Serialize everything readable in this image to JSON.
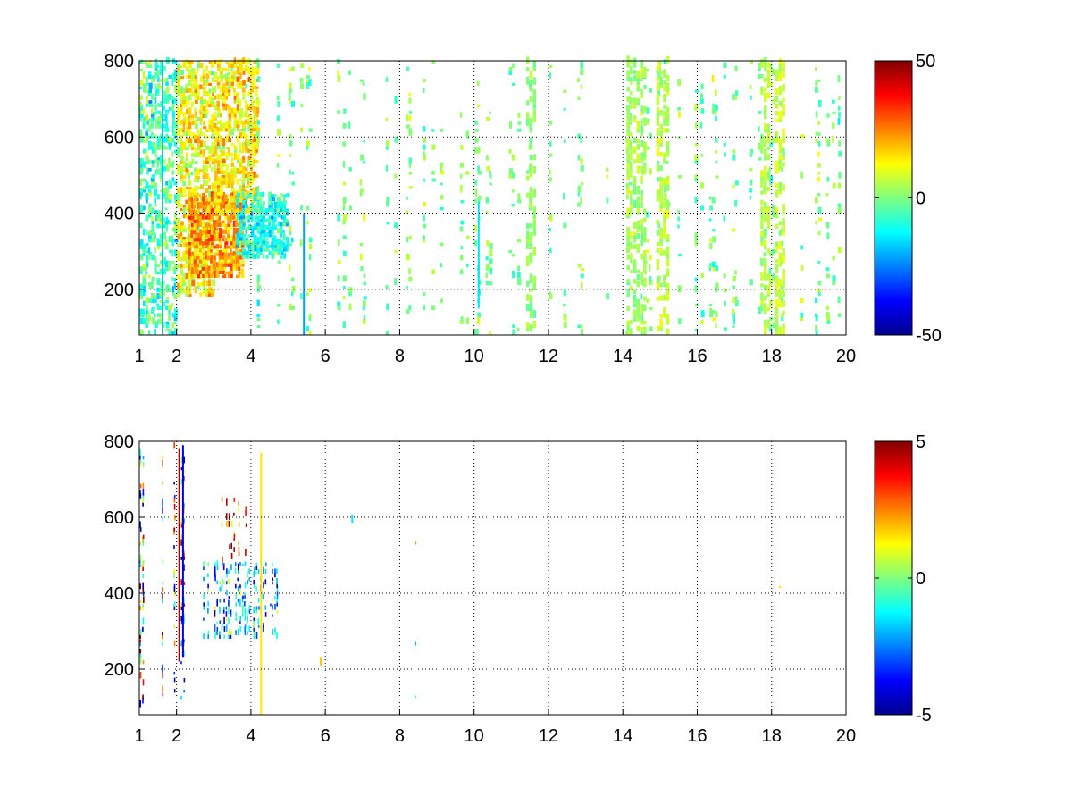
{
  "chart_data": [
    {
      "type": "heatmap",
      "title": "",
      "xlabel": "",
      "ylabel": "",
      "xlim": [
        1,
        20
      ],
      "ylim": [
        80,
        800
      ],
      "xticks": [
        1,
        2,
        4,
        6,
        8,
        10,
        12,
        14,
        16,
        18,
        20
      ],
      "xtick_labels": [
        "1",
        "2",
        "4",
        "6",
        "8",
        "10",
        "12",
        "14",
        "16",
        "18",
        "20"
      ],
      "yticks": [
        200,
        400,
        600,
        800
      ],
      "ytick_labels": [
        "200",
        "400",
        "600",
        "800"
      ],
      "grid": true,
      "colormap": "jet",
      "clim": [
        -50,
        50
      ],
      "colorbar_ticks": [
        -50,
        0,
        50
      ],
      "colorbar_labels": [
        "-50",
        "0",
        "50"
      ],
      "nan_color": "#ffffff",
      "regions": [
        {
          "x": [
            1.0,
            2.0
          ],
          "y": [
            80,
            800
          ],
          "density": 0.45,
          "mean": -5,
          "spread": 10
        },
        {
          "x": [
            2.0,
            3.0
          ],
          "y": [
            180,
            800
          ],
          "density": 0.55,
          "mean": 12,
          "spread": 10
        },
        {
          "x": [
            2.3,
            3.8
          ],
          "y": [
            230,
            450
          ],
          "density": 0.85,
          "mean": 22,
          "spread": 10
        },
        {
          "x": [
            3.0,
            4.2
          ],
          "y": [
            400,
            800
          ],
          "density": 0.6,
          "mean": 14,
          "spread": 9
        },
        {
          "x": [
            3.6,
            5.0
          ],
          "y": [
            280,
            450
          ],
          "density": 0.6,
          "mean": -10,
          "spread": 9
        },
        {
          "x": [
            4.0,
            6.0
          ],
          "y": [
            80,
            800
          ],
          "density": 0.15,
          "mean": 0,
          "spread": 10
        },
        {
          "x": [
            6.0,
            20.0
          ],
          "y": [
            80,
            800
          ],
          "density": 0.14,
          "mean": 0,
          "spread": 8
        }
      ],
      "streaks": [
        {
          "x": 1.6,
          "y": [
            80,
            800
          ],
          "value": -18
        },
        {
          "x": 5.4,
          "y": [
            80,
            400
          ],
          "value": -22
        },
        {
          "x": 10.1,
          "y": [
            150,
            430
          ],
          "value": -15
        }
      ],
      "column_bands": [
        {
          "x": [
            14.1,
            14.6
          ],
          "density": 0.4,
          "mean": 4
        },
        {
          "x": [
            14.9,
            15.2
          ],
          "density": 0.35,
          "mean": 5
        },
        {
          "x": [
            17.7,
            17.9
          ],
          "density": 0.35,
          "mean": 5
        },
        {
          "x": [
            18.1,
            18.3
          ],
          "density": 0.4,
          "mean": 7
        },
        {
          "x": [
            11.4,
            11.6
          ],
          "density": 0.3,
          "mean": 2
        }
      ]
    },
    {
      "type": "heatmap",
      "title": "",
      "xlabel": "",
      "ylabel": "",
      "xlim": [
        1,
        20
      ],
      "ylim": [
        80,
        800
      ],
      "xticks": [
        1,
        2,
        4,
        6,
        8,
        10,
        12,
        14,
        16,
        18,
        20
      ],
      "xtick_labels": [
        "1",
        "2",
        "4",
        "6",
        "8",
        "10",
        "12",
        "14",
        "16",
        "18",
        "20"
      ],
      "yticks": [
        200,
        400,
        600,
        800
      ],
      "ytick_labels": [
        "200",
        "400",
        "600",
        "800"
      ],
      "grid": true,
      "colormap": "jet",
      "clim": [
        -5,
        5
      ],
      "colorbar_ticks": [
        -5,
        0,
        5
      ],
      "colorbar_labels": [
        "-5",
        "0",
        "5"
      ],
      "nan_color": "#ffffff",
      "regions": [
        {
          "x": [
            1.0,
            1.15
          ],
          "y": [
            100,
            780
          ],
          "density": 0.3,
          "mean": 0,
          "spread": 5
        },
        {
          "x": [
            1.6,
            2.3
          ],
          "y": [
            100,
            790
          ],
          "density": 0.22,
          "mean": 0,
          "spread": 6
        },
        {
          "x": [
            2.7,
            4.8
          ],
          "y": [
            280,
            480
          ],
          "density": 0.35,
          "mean": -2,
          "spread": 2
        },
        {
          "x": [
            3.2,
            3.9
          ],
          "y": [
            480,
            650
          ],
          "density": 0.25,
          "mean": 3.5,
          "spread": 2
        }
      ],
      "streaks": [
        {
          "x": 2.05,
          "y": [
            220,
            780
          ],
          "value": 4.5
        },
        {
          "x": 2.15,
          "y": [
            230,
            790
          ],
          "value": -4
        }
      ],
      "points": [
        {
          "x": 4.25,
          "y": [
            80,
            770
          ],
          "value": 1.5
        },
        {
          "x": 5.85,
          "y": [
            210,
            230
          ],
          "value": 1.8
        },
        {
          "x": 6.7,
          "y": [
            585,
            605
          ],
          "value": -1.5
        },
        {
          "x": 8.4,
          "y": [
            262,
            272
          ],
          "value": -1.8
        },
        {
          "x": 8.4,
          "y": [
            528,
            536
          ],
          "value": 2.2
        },
        {
          "x": 8.4,
          "y": [
            125,
            131
          ],
          "value": -0.8
        },
        {
          "x": 18.2,
          "y": [
            414,
            420
          ],
          "value": 1.5
        }
      ]
    }
  ]
}
